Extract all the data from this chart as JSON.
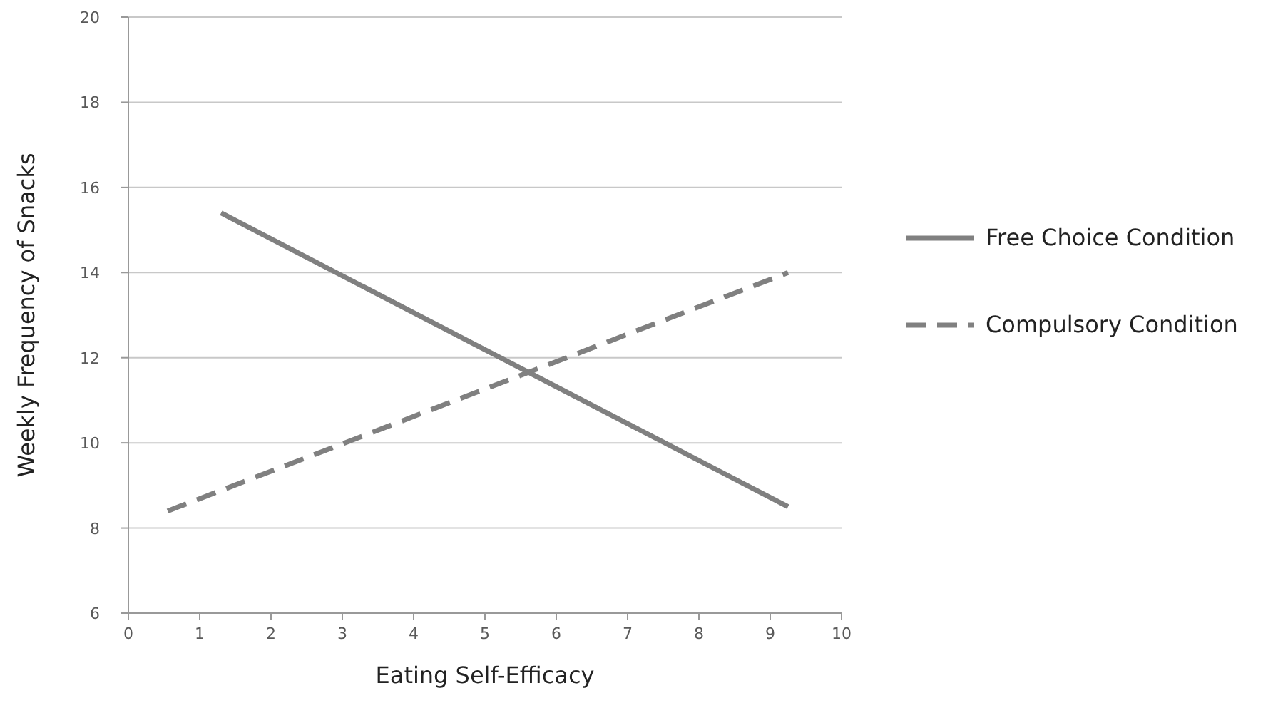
{
  "chart_data": {
    "type": "line",
    "xlabel": "Eating Self-Efficacy",
    "ylabel": "Weekly Frequency of Snacks",
    "xlim": [
      0,
      10
    ],
    "xticks": [
      0,
      1,
      2,
      3,
      4,
      5,
      6,
      7,
      8,
      9,
      10
    ],
    "ylim": [
      6,
      20
    ],
    "yticks": [
      6,
      8,
      10,
      12,
      14,
      16,
      18,
      20
    ],
    "grid": "y",
    "legend": "right",
    "marker": "none",
    "series": [
      {
        "name": "Free Choice Condition",
        "color": "#808080",
        "x": [
          1.3,
          9.25
        ],
        "values": [
          15.4,
          8.5
        ],
        "line_style": "solid"
      },
      {
        "name": "Compulsory Condition",
        "color": "#808080",
        "x": [
          0.55,
          9.25
        ],
        "values": [
          8.4,
          14
        ],
        "line_style": "dashed"
      }
    ]
  }
}
